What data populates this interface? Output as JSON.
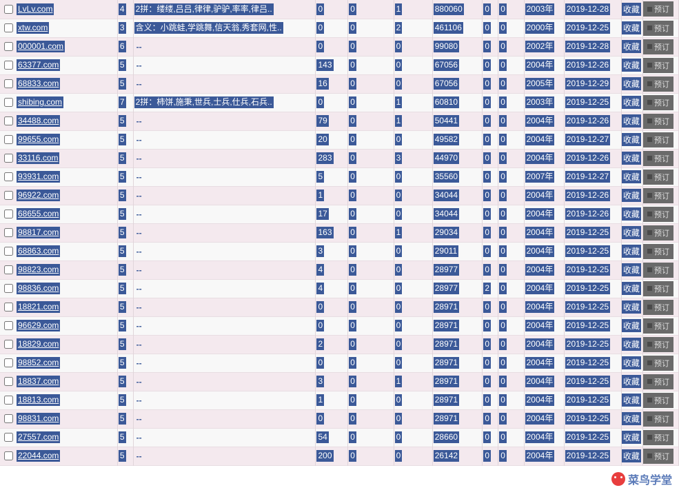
{
  "favorite_label": "收藏",
  "order_label": "预订",
  "logo_text": "菜鸟学堂",
  "dash": "--",
  "rows": [
    {
      "domain": "LvLv.com",
      "n1": "4",
      "desc": "2拼：缕缕,吕吕,律律,驴驴,率率,律吕..",
      "n2": "0",
      "n3": "0",
      "n4": "1",
      "val": "880060",
      "n5": "0",
      "n6": "0",
      "yr": "2003年",
      "dt": "2019-12-28"
    },
    {
      "domain": "xtw.com",
      "n1": "3",
      "desc": "含义：小跳蛙,学跳舞,信天翁,秀套网,性..",
      "n2": "0",
      "n3": "0",
      "n4": "2",
      "val": "461106",
      "n5": "0",
      "n6": "0",
      "yr": "2000年",
      "dt": "2019-12-25"
    },
    {
      "domain": "000001.com",
      "n1": "6",
      "desc": "",
      "n2": "0",
      "n3": "0",
      "n4": "0",
      "val": "99080",
      "n5": "0",
      "n6": "0",
      "yr": "2002年",
      "dt": "2019-12-28"
    },
    {
      "domain": "63377.com",
      "n1": "5",
      "desc": "",
      "n2": "143",
      "n3": "0",
      "n4": "0",
      "val": "67056",
      "n5": "0",
      "n6": "0",
      "yr": "2004年",
      "dt": "2019-12-26"
    },
    {
      "domain": "68833.com",
      "n1": "5",
      "desc": "",
      "n2": "16",
      "n3": "0",
      "n4": "0",
      "val": "67056",
      "n5": "0",
      "n6": "0",
      "yr": "2005年",
      "dt": "2019-12-29"
    },
    {
      "domain": "shibing.com",
      "n1": "7",
      "desc": "2拼：柿饼,施秉,世兵,士兵,仕兵,石兵..",
      "n2": "0",
      "n3": "0",
      "n4": "1",
      "val": "60810",
      "n5": "0",
      "n6": "0",
      "yr": "2003年",
      "dt": "2019-12-25"
    },
    {
      "domain": "34488.com",
      "n1": "5",
      "desc": "",
      "n2": "79",
      "n3": "0",
      "n4": "1",
      "val": "50441",
      "n5": "0",
      "n6": "0",
      "yr": "2004年",
      "dt": "2019-12-26"
    },
    {
      "domain": "99655.com",
      "n1": "5",
      "desc": "",
      "n2": "20",
      "n3": "0",
      "n4": "0",
      "val": "49582",
      "n5": "0",
      "n6": "0",
      "yr": "2004年",
      "dt": "2019-12-27"
    },
    {
      "domain": "33116.com",
      "n1": "5",
      "desc": "",
      "n2": "283",
      "n3": "0",
      "n4": "3",
      "val": "44970",
      "n5": "0",
      "n6": "0",
      "yr": "2004年",
      "dt": "2019-12-26"
    },
    {
      "domain": "93931.com",
      "n1": "5",
      "desc": "",
      "n2": "5",
      "n3": "0",
      "n4": "0",
      "val": "35560",
      "n5": "0",
      "n6": "0",
      "yr": "2007年",
      "dt": "2019-12-27"
    },
    {
      "domain": "96922.com",
      "n1": "5",
      "desc": "",
      "n2": "1",
      "n3": "0",
      "n4": "0",
      "val": "34044",
      "n5": "0",
      "n6": "0",
      "yr": "2004年",
      "dt": "2019-12-26"
    },
    {
      "domain": "68655.com",
      "n1": "5",
      "desc": "",
      "n2": "17",
      "n3": "0",
      "n4": "0",
      "val": "34044",
      "n5": "0",
      "n6": "0",
      "yr": "2004年",
      "dt": "2019-12-26"
    },
    {
      "domain": "98817.com",
      "n1": "5",
      "desc": "",
      "n2": "163",
      "n3": "0",
      "n4": "1",
      "val": "29034",
      "n5": "0",
      "n6": "0",
      "yr": "2004年",
      "dt": "2019-12-25"
    },
    {
      "domain": "68863.com",
      "n1": "5",
      "desc": "",
      "n2": "3",
      "n3": "0",
      "n4": "0",
      "val": "29011",
      "n5": "0",
      "n6": "0",
      "yr": "2004年",
      "dt": "2019-12-25"
    },
    {
      "domain": "98823.com",
      "n1": "5",
      "desc": "",
      "n2": "4",
      "n3": "0",
      "n4": "0",
      "val": "28977",
      "n5": "0",
      "n6": "0",
      "yr": "2004年",
      "dt": "2019-12-25"
    },
    {
      "domain": "98836.com",
      "n1": "5",
      "desc": "",
      "n2": "4",
      "n3": "0",
      "n4": "0",
      "val": "28977",
      "n5": "2",
      "n6": "0",
      "yr": "2004年",
      "dt": "2019-12-25"
    },
    {
      "domain": "18821.com",
      "n1": "5",
      "desc": "",
      "n2": "0",
      "n3": "0",
      "n4": "0",
      "val": "28971",
      "n5": "0",
      "n6": "0",
      "yr": "2004年",
      "dt": "2019-12-25"
    },
    {
      "domain": "96629.com",
      "n1": "5",
      "desc": "",
      "n2": "0",
      "n3": "0",
      "n4": "0",
      "val": "28971",
      "n5": "0",
      "n6": "0",
      "yr": "2004年",
      "dt": "2019-12-25"
    },
    {
      "domain": "18829.com",
      "n1": "5",
      "desc": "",
      "n2": "2",
      "n3": "0",
      "n4": "0",
      "val": "28971",
      "n5": "0",
      "n6": "0",
      "yr": "2004年",
      "dt": "2019-12-25"
    },
    {
      "domain": "98852.com",
      "n1": "5",
      "desc": "",
      "n2": "0",
      "n3": "0",
      "n4": "0",
      "val": "28971",
      "n5": "0",
      "n6": "0",
      "yr": "2004年",
      "dt": "2019-12-25"
    },
    {
      "domain": "18837.com",
      "n1": "5",
      "desc": "",
      "n2": "3",
      "n3": "0",
      "n4": "1",
      "val": "28971",
      "n5": "0",
      "n6": "0",
      "yr": "2004年",
      "dt": "2019-12-25"
    },
    {
      "domain": "18813.com",
      "n1": "5",
      "desc": "",
      "n2": "1",
      "n3": "0",
      "n4": "0",
      "val": "28971",
      "n5": "0",
      "n6": "0",
      "yr": "2004年",
      "dt": "2019-12-25"
    },
    {
      "domain": "98831.com",
      "n1": "5",
      "desc": "",
      "n2": "0",
      "n3": "0",
      "n4": "0",
      "val": "28971",
      "n5": "0",
      "n6": "0",
      "yr": "2004年",
      "dt": "2019-12-25"
    },
    {
      "domain": "27557.com",
      "n1": "5",
      "desc": "",
      "n2": "54",
      "n3": "0",
      "n4": "0",
      "val": "28660",
      "n5": "0",
      "n6": "0",
      "yr": "2004年",
      "dt": "2019-12-25"
    },
    {
      "domain": "22044.com",
      "n1": "5",
      "desc": "",
      "n2": "200",
      "n3": "0",
      "n4": "0",
      "val": "26142",
      "n5": "0",
      "n6": "0",
      "yr": "2004年",
      "dt": "2019-12-25"
    }
  ]
}
